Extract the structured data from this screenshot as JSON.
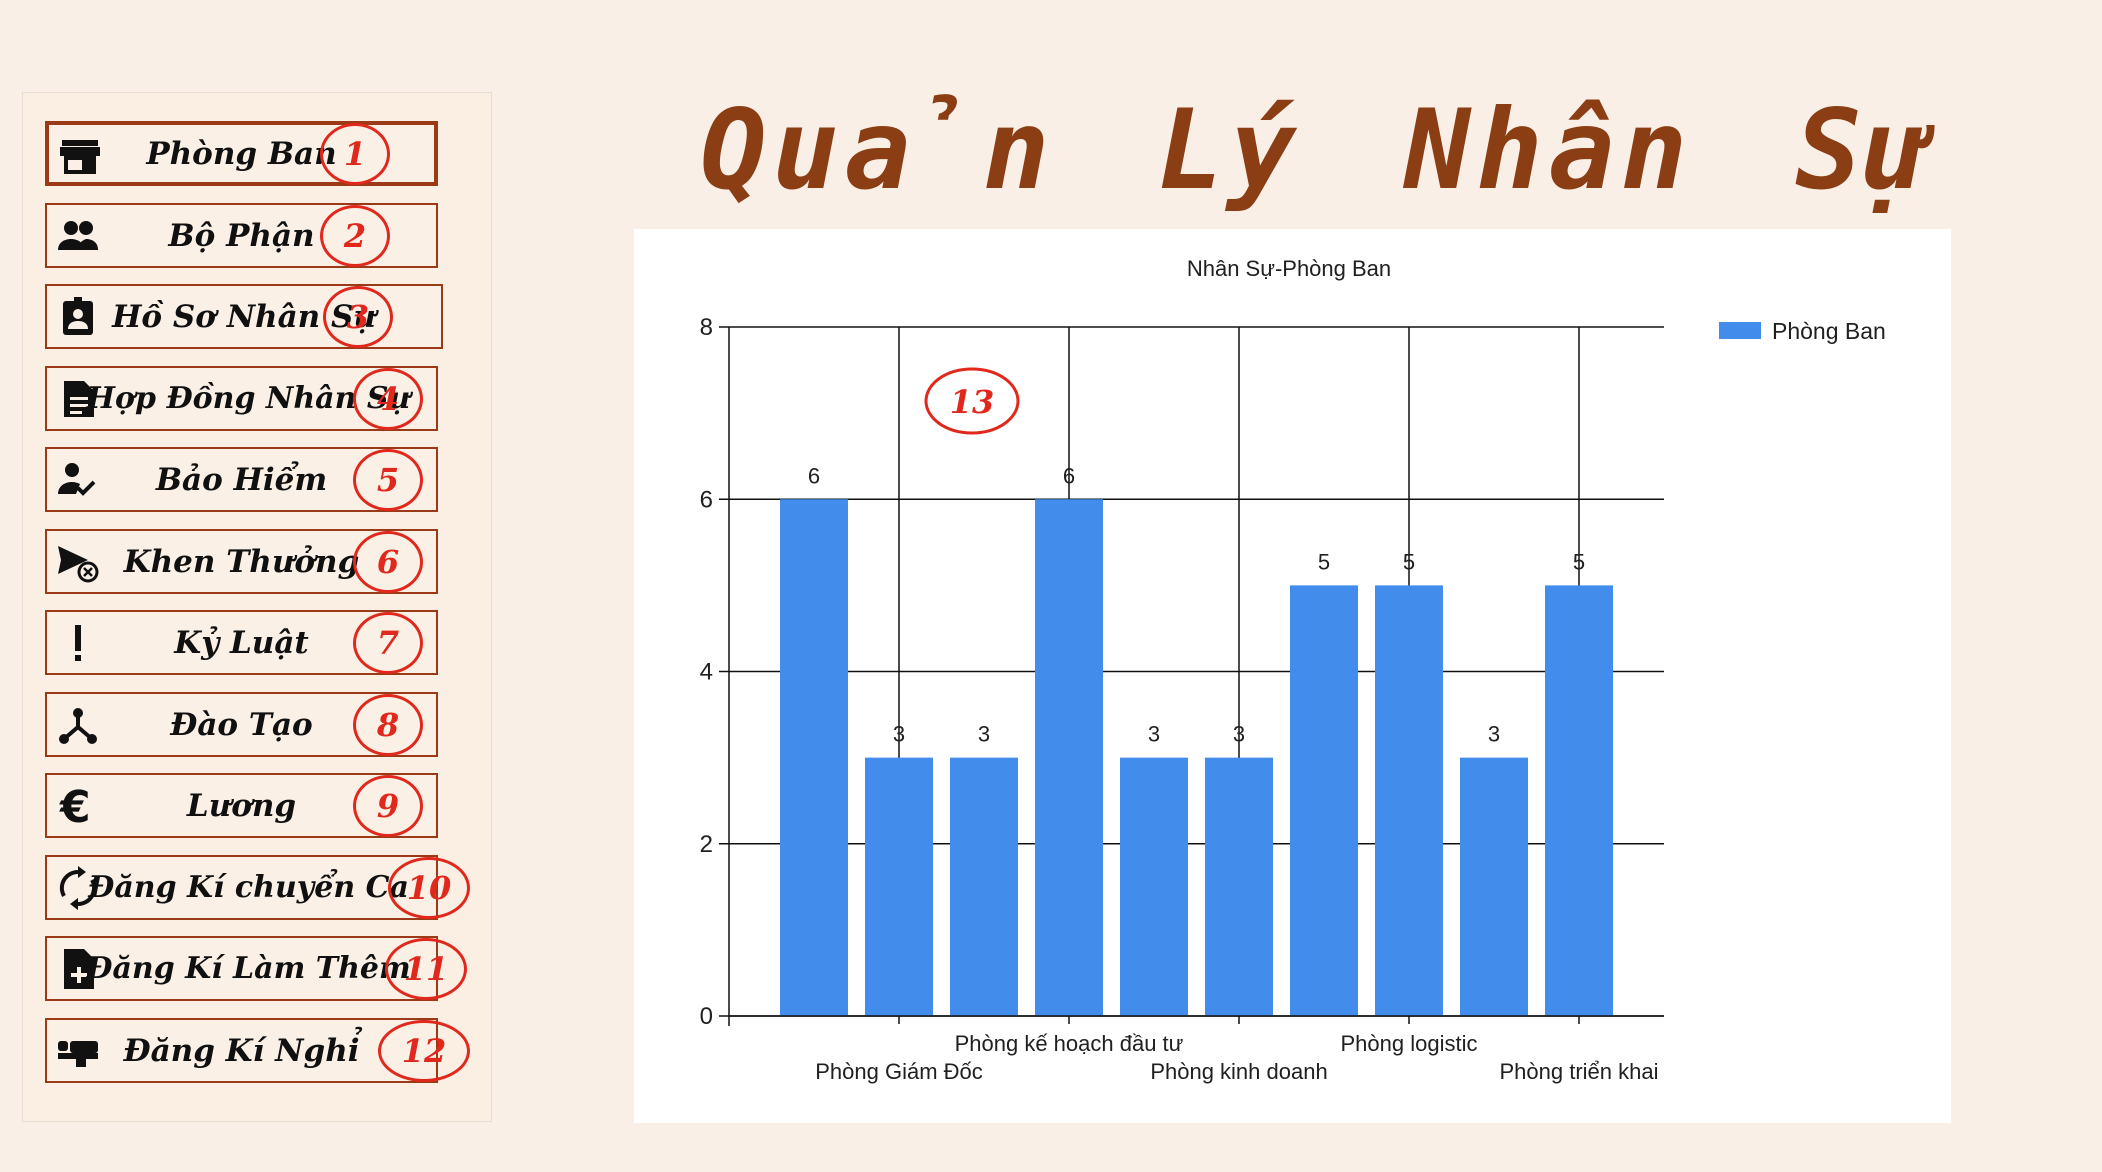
{
  "app": {
    "title": "Quản Lý Nhân Sự"
  },
  "sidebar": {
    "items": [
      {
        "label": "Phòng Ban",
        "number": "1",
        "icon": "store-icon",
        "name": "phong-ban",
        "active": true
      },
      {
        "label": "Bộ Phận",
        "number": "2",
        "icon": "group-icon",
        "name": "bo-phan"
      },
      {
        "label": "Hồ Sơ Nhân Sự",
        "number": "3",
        "icon": "badge-icon",
        "name": "ho-so-nhan-su"
      },
      {
        "label": "Hợp Đồng Nhân Sự",
        "number": "4",
        "icon": "document-icon",
        "name": "hop-dong-nhan-su"
      },
      {
        "label": "Bảo Hiểm",
        "number": "5",
        "icon": "person-check-icon",
        "name": "bao-hiem"
      },
      {
        "label": "Khen Thưởng",
        "number": "6",
        "icon": "send-cancel-icon",
        "name": "khen-thuong"
      },
      {
        "label": "Kỷ Luật",
        "number": "7",
        "icon": "exclamation-icon",
        "name": "ky-luat"
      },
      {
        "label": "Đào Tạo",
        "number": "8",
        "icon": "hub-icon",
        "name": "dao-tao"
      },
      {
        "label": "Lương",
        "number": "9",
        "icon": "euro-icon",
        "name": "luong"
      },
      {
        "label": "Đăng Kí chuyển Ca",
        "number": "10",
        "icon": "sync-icon",
        "name": "dang-ki-chuyen-ca"
      },
      {
        "label": "Đăng Kí Làm Thêm",
        "number": "11",
        "icon": "note-add-icon",
        "name": "dang-ki-lam-them"
      },
      {
        "label": "Đăng Kí Nghỉ",
        "number": "12",
        "icon": "bed-icon",
        "name": "dang-ki-nghi"
      }
    ]
  },
  "chart_annotation": "13",
  "chart_data": {
    "type": "bar",
    "title": "Nhân Sự-Phòng Ban",
    "legend": "top-right",
    "grid": true,
    "ylim": [
      0,
      8
    ],
    "yticks": [
      0,
      2,
      4,
      6,
      8
    ],
    "categories": [
      "",
      "Phòng Giám Đốc",
      "",
      "Phòng kế hoạch đầu tư",
      "",
      "Phòng kinh doanh",
      "",
      "Phòng logistic",
      "",
      "Phòng triển khai"
    ],
    "series": [
      {
        "name": "Phòng Ban",
        "color": "#428ceb",
        "values": [
          6,
          3,
          3,
          6,
          3,
          3,
          5,
          5,
          3,
          5
        ]
      }
    ]
  }
}
